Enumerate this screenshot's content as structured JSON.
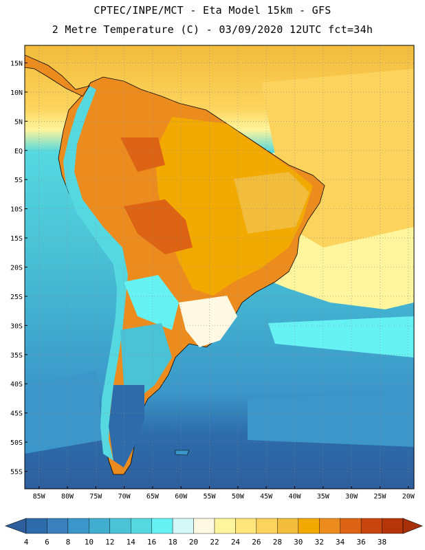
{
  "header": {
    "line1": "CPTEC/INPE/MCT -  Eta Model 15km - GFS",
    "line2": "2 Metre Temperature (C) - 03/09/2020 12UTC fct=34h"
  },
  "map_data": {
    "lat_labels": [
      "15N",
      "10N",
      "5N",
      "EQ",
      "5S",
      "10S",
      "15S",
      "20S",
      "25S",
      "30S",
      "35S",
      "40S",
      "45S",
      "50S",
      "55S"
    ],
    "lon_labels": [
      "85W",
      "80W",
      "75W",
      "70W",
      "65W",
      "60W",
      "55W",
      "50W",
      "45W",
      "40W",
      "35W",
      "30W",
      "25W",
      "20W"
    ],
    "lat_range": [
      18,
      -58
    ],
    "lon_range": [
      -87.5,
      -19
    ]
  },
  "colorbar": {
    "labels": [
      "4",
      "6",
      "8",
      "10",
      "12",
      "14",
      "16",
      "18",
      "20",
      "22",
      "24",
      "26",
      "28",
      "30",
      "32",
      "34",
      "36",
      "38"
    ],
    "colors": [
      "#2d6bab",
      "#3a80bd",
      "#3b97c9",
      "#41adcf",
      "#4bc3d6",
      "#55d8e0",
      "#66f2f2",
      "#d4f7f8",
      "#fff8e2",
      "#fff59c",
      "#ffe57a",
      "#fcd35c",
      "#f2bc3c",
      "#f2a900",
      "#ec8c1e",
      "#dd6414",
      "#c84510",
      "#b53508"
    ],
    "low_color": "#2e5f9c",
    "high_color": "#a83008"
  }
}
